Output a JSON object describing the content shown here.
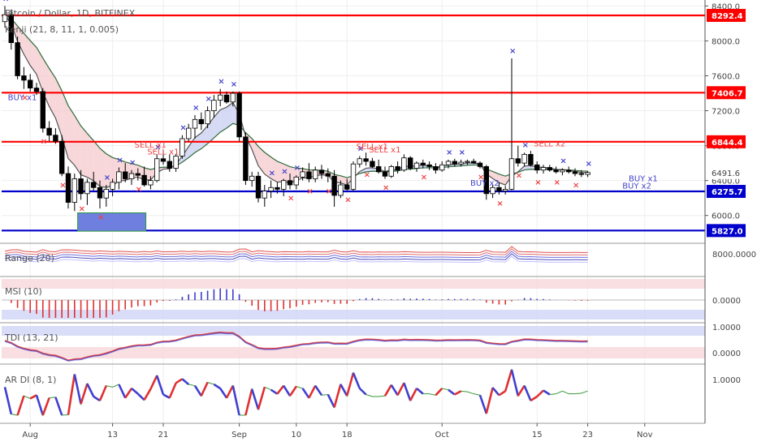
{
  "title": "Bitcoin / Dollar, 1D, BITFINEX",
  "colors": {
    "up": "#ffffff",
    "down": "#000000",
    "wick": "#000000",
    "red_level": "#ff0000",
    "blue_level": "#0000cc",
    "buy": "#4444cc",
    "sell": "#ee4444"
  },
  "chart_data": [
    {
      "type": "candlestick",
      "name": "Bitcoin / Dollar, 1D, BITFINEX",
      "indicator_label": "Kenji (21, 8, 11, 1, 0.005)",
      "ylim": [
        5700,
        8450
      ],
      "y_ticks": [
        "6000.0",
        "6400.0",
        "6800.0",
        "7200.0",
        "7600.0",
        "8000.0",
        "8400.0"
      ],
      "x_ticks": [
        "Aug",
        "13",
        "21",
        "Sep",
        "10",
        "18",
        "Oct",
        "15",
        "23",
        "Nov"
      ],
      "x_tick_index": [
        4,
        17,
        25,
        37,
        46,
        54,
        69,
        84,
        92,
        101
      ],
      "levels": [
        {
          "label": "8292.4",
          "value": 8292.4,
          "color": "red"
        },
        {
          "label": "7406.7",
          "value": 7406.7,
          "color": "red"
        },
        {
          "label": "6844.4",
          "value": 6844.4,
          "color": "red"
        },
        {
          "label": "6491.6",
          "value": 6491.6,
          "color": "last"
        },
        {
          "label": "6275.7",
          "value": 6275.7,
          "color": "blue"
        },
        {
          "label": "5827.0",
          "value": 5827.0,
          "color": "blue"
        }
      ],
      "ohlc": [
        [
          8220,
          8400,
          8150,
          8300
        ],
        [
          8300,
          8360,
          7900,
          7980
        ],
        [
          7980,
          8050,
          7560,
          7600
        ],
        [
          7600,
          7700,
          7450,
          7550
        ],
        [
          7550,
          7620,
          7420,
          7460
        ],
        [
          7460,
          7520,
          7380,
          7420
        ],
        [
          7420,
          7460,
          6950,
          7000
        ],
        [
          7000,
          7080,
          6850,
          6920
        ],
        [
          6920,
          7000,
          6820,
          6850
        ],
        [
          6850,
          6920,
          6450,
          6480
        ],
        [
          6480,
          6560,
          6080,
          6150
        ],
        [
          6150,
          6480,
          6050,
          6420
        ],
        [
          6420,
          6520,
          6180,
          6250
        ],
        [
          6250,
          6420,
          6120,
          6380
        ],
        [
          6380,
          6500,
          6280,
          6320
        ],
        [
          6320,
          6400,
          6080,
          6200
        ],
        [
          6200,
          6350,
          6100,
          6300
        ],
        [
          6300,
          6420,
          6220,
          6380
        ],
        [
          6380,
          6550,
          6300,
          6500
        ],
        [
          6500,
          6600,
          6380,
          6420
        ],
        [
          6420,
          6520,
          6350,
          6480
        ],
        [
          6480,
          6540,
          6400,
          6460
        ],
        [
          6460,
          6560,
          6330,
          6350
        ],
        [
          6350,
          6450,
          6300,
          6400
        ],
        [
          6400,
          6700,
          6380,
          6650
        ],
        [
          6650,
          6750,
          6580,
          6620
        ],
        [
          6620,
          6700,
          6500,
          6540
        ],
        [
          6540,
          6700,
          6500,
          6680
        ],
        [
          6680,
          6920,
          6650,
          6880
        ],
        [
          6880,
          7050,
          6850,
          7000
        ],
        [
          7000,
          7150,
          6880,
          7100
        ],
        [
          7100,
          7180,
          6980,
          7050
        ],
        [
          7050,
          7250,
          7000,
          7200
        ],
        [
          7200,
          7380,
          7120,
          7320
        ],
        [
          7320,
          7450,
          7250,
          7380
        ],
        [
          7380,
          7420,
          7280,
          7300
        ],
        [
          7300,
          7420,
          7250,
          7400
        ],
        [
          7400,
          7420,
          6850,
          6900
        ],
        [
          6900,
          6950,
          6350,
          6400
        ],
        [
          6400,
          6500,
          6330,
          6450
        ],
        [
          6450,
          6500,
          6150,
          6200
        ],
        [
          6200,
          6350,
          6100,
          6280
        ],
        [
          6280,
          6400,
          6200,
          6320
        ],
        [
          6320,
          6380,
          6250,
          6300
        ],
        [
          6300,
          6420,
          6220,
          6400
        ],
        [
          6400,
          6480,
          6300,
          6350
        ],
        [
          6350,
          6460,
          6300,
          6440
        ],
        [
          6440,
          6550,
          6400,
          6500
        ],
        [
          6500,
          6600,
          6380,
          6420
        ],
        [
          6420,
          6560,
          6380,
          6520
        ],
        [
          6520,
          6580,
          6420,
          6480
        ],
        [
          6480,
          6540,
          6380,
          6450
        ],
        [
          6450,
          6520,
          6100,
          6230
        ],
        [
          6230,
          6400,
          6200,
          6350
        ],
        [
          6350,
          6420,
          6280,
          6300
        ],
        [
          6300,
          6620,
          6280,
          6590
        ],
        [
          6590,
          6680,
          6550,
          6650
        ],
        [
          6650,
          6720,
          6570,
          6620
        ],
        [
          6620,
          6660,
          6540,
          6560
        ],
        [
          6560,
          6640,
          6480,
          6500
        ],
        [
          6500,
          6560,
          6420,
          6450
        ],
        [
          6450,
          6580,
          6430,
          6560
        ],
        [
          6560,
          6620,
          6480,
          6520
        ],
        [
          6520,
          6700,
          6500,
          6660
        ],
        [
          6660,
          6680,
          6520,
          6540
        ],
        [
          6540,
          6620,
          6500,
          6600
        ],
        [
          6600,
          6640,
          6540,
          6580
        ],
        [
          6580,
          6620,
          6520,
          6560
        ],
        [
          6560,
          6600,
          6480,
          6520
        ],
        [
          6520,
          6620,
          6500,
          6580
        ],
        [
          6580,
          6640,
          6540,
          6620
        ],
        [
          6620,
          6650,
          6560,
          6590
        ],
        [
          6590,
          6640,
          6560,
          6610
        ],
        [
          6610,
          6640,
          6580,
          6620
        ],
        [
          6620,
          6650,
          6590,
          6600
        ],
        [
          6600,
          6620,
          6540,
          6560
        ],
        [
          6560,
          6580,
          6180,
          6250
        ],
        [
          6250,
          6350,
          6200,
          6320
        ],
        [
          6320,
          6380,
          6240,
          6280
        ],
        [
          6280,
          6340,
          6240,
          6300
        ],
        [
          6300,
          7800,
          6290,
          6650
        ],
        [
          6650,
          6800,
          6560,
          6600
        ],
        [
          6600,
          6720,
          6560,
          6700
        ],
        [
          6700,
          6740,
          6560,
          6580
        ],
        [
          6580,
          6620,
          6480,
          6520
        ],
        [
          6520,
          6580,
          6480,
          6550
        ],
        [
          6550,
          6580,
          6500,
          6520
        ],
        [
          6520,
          6560,
          6480,
          6500
        ],
        [
          6500,
          6540,
          6460,
          6520
        ],
        [
          6520,
          6560,
          6480,
          6500
        ],
        [
          6500,
          6540,
          6450,
          6480
        ],
        [
          6480,
          6520,
          6440,
          6470
        ],
        [
          6470,
          6510,
          6440,
          6492
        ]
      ],
      "signals": [
        {
          "label": "BUY x1",
          "index": 2,
          "value": 7320,
          "side": "buy"
        },
        {
          "label": "SELL x1",
          "index": 22,
          "value": 6780,
          "side": "sell"
        },
        {
          "label": "SELL x1",
          "index": 24,
          "value": 6700,
          "side": "sell"
        },
        {
          "label": "SELL x1",
          "index": 57,
          "value": 6760,
          "side": "sell"
        },
        {
          "label": "SELL x1",
          "index": 59,
          "value": 6720,
          "side": "sell"
        },
        {
          "label": "BUY x2",
          "index": 75,
          "value": 6340,
          "side": "buy"
        },
        {
          "label": "SELL x2",
          "index": 85,
          "value": 6790,
          "side": "sell"
        },
        {
          "label": "BUY x1",
          "index": 100,
          "value": 6390,
          "side": "buy"
        },
        {
          "label": "BUY x2",
          "index": 99,
          "value": 6310,
          "side": "buy"
        }
      ]
    },
    {
      "type": "line",
      "name": "Range",
      "label": "Range (20)",
      "value_label": "8000.0000"
    },
    {
      "type": "bar",
      "name": "MSI",
      "label": "MSI (10)",
      "value_label": "0.0000"
    },
    {
      "type": "line",
      "name": "TDI",
      "label": "TDI (13, 21)",
      "value_labels": [
        "1.0000",
        "0.0000"
      ]
    },
    {
      "type": "line",
      "name": "AR DI",
      "label": "AR DI (8, 1)",
      "value_label": "1.0000"
    }
  ]
}
